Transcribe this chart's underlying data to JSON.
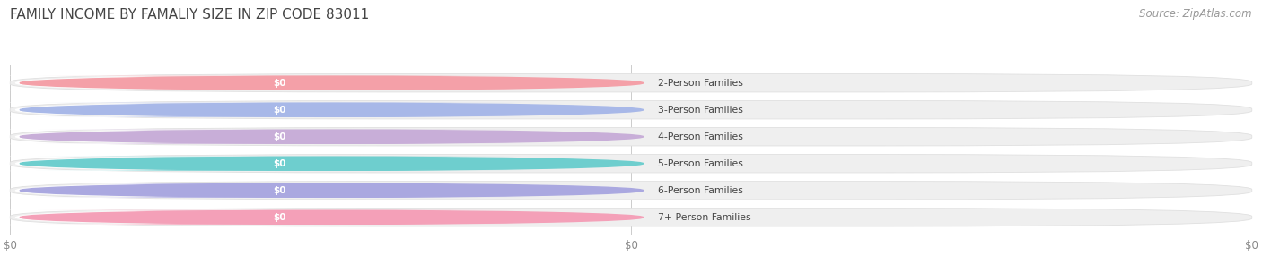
{
  "title": "FAMILY INCOME BY FAMALIY SIZE IN ZIP CODE 83011",
  "source": "Source: ZipAtlas.com",
  "categories": [
    "2-Person Families",
    "3-Person Families",
    "4-Person Families",
    "5-Person Families",
    "6-Person Families",
    "7+ Person Families"
  ],
  "values": [
    0,
    0,
    0,
    0,
    0,
    0
  ],
  "bar_colors": [
    "#f4a0a8",
    "#a8b8e8",
    "#c8aed8",
    "#6ecece",
    "#aaa8e0",
    "#f4a0b8"
  ],
  "background_color": "#ffffff",
  "bar_bg_color": "#efefef",
  "bar_bg_edge_color": "#e0e0e0",
  "white_pill_color": "#ffffff",
  "title_fontsize": 11,
  "source_fontsize": 8.5,
  "value_label": "$0",
  "x_tick_labels": [
    "$0",
    "$0",
    "$0"
  ],
  "x_tick_positions": [
    0.0,
    0.5,
    1.0
  ],
  "grid_color": "#cccccc",
  "tick_color": "#888888",
  "label_text_color": "#444444",
  "source_color": "#999999",
  "title_color": "#444444"
}
